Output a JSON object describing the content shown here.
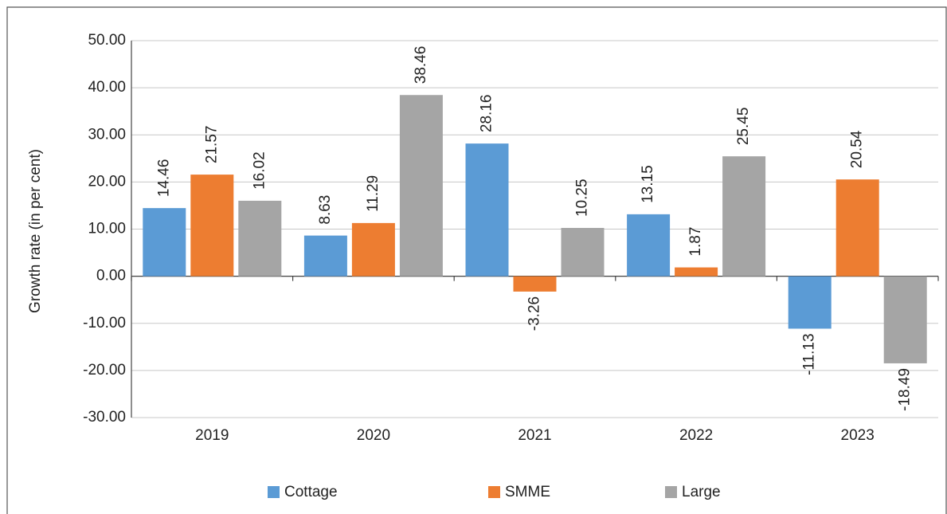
{
  "chart_data": {
    "type": "bar",
    "y_label": "Growth rate (in per cent)",
    "categories": [
      "2019",
      "2020",
      "2021",
      "2022",
      "2023"
    ],
    "series": [
      {
        "name": "Cottage",
        "color": "#5b9bd5",
        "values": [
          14.46,
          8.63,
          28.16,
          13.15,
          -11.13
        ]
      },
      {
        "name": "SMME",
        "color": "#ed7d31",
        "values": [
          21.57,
          11.29,
          -3.26,
          1.87,
          20.54
        ]
      },
      {
        "name": "Large",
        "color": "#a5a5a5",
        "values": [
          16.02,
          38.46,
          10.25,
          25.45,
          -18.49
        ]
      }
    ],
    "ylim": [
      -30,
      50
    ],
    "yticks": [
      {
        "value": -30,
        "label": "-30.00"
      },
      {
        "value": -20,
        "label": "-20.00"
      },
      {
        "value": -10,
        "label": "-10.00"
      },
      {
        "value": 0,
        "label": "0.00"
      },
      {
        "value": 10,
        "label": "10.00"
      },
      {
        "value": 20,
        "label": "20.00"
      },
      {
        "value": 30,
        "label": "30.00"
      },
      {
        "value": 40,
        "label": "40.00"
      },
      {
        "value": 50,
        "label": "50.00"
      }
    ],
    "grid": true,
    "legend": "bottom"
  }
}
